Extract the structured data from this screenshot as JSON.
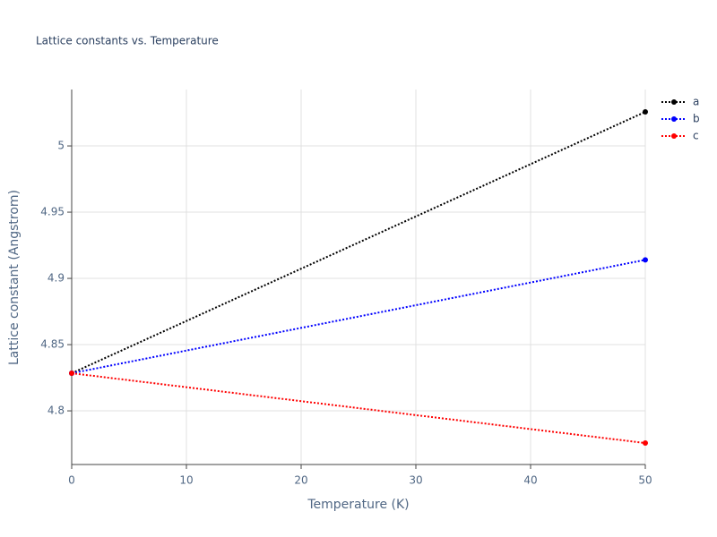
{
  "chart_data": {
    "type": "line",
    "title": "Lattice constants vs. Temperature",
    "x_label": "Temperature (K)",
    "y_label": "Lattice constant (Angstrom)",
    "x": [
      0,
      50
    ],
    "series": [
      {
        "name": "a",
        "color": "#000000",
        "values": [
          4.8284,
          5.0257
        ]
      },
      {
        "name": "b",
        "color": "#0000ff",
        "values": [
          4.8284,
          4.914
        ]
      },
      {
        "name": "c",
        "color": "#ff0000",
        "values": [
          4.8284,
          4.7757
        ]
      }
    ],
    "xlim": [
      0,
      50
    ],
    "xticks": [
      0,
      10,
      20,
      30,
      40,
      50
    ],
    "ylim": [
      4.7595,
      5.0426
    ],
    "yticks": [
      4.8,
      4.85,
      4.9,
      4.95,
      5
    ],
    "grid": true,
    "legend": "right"
  }
}
